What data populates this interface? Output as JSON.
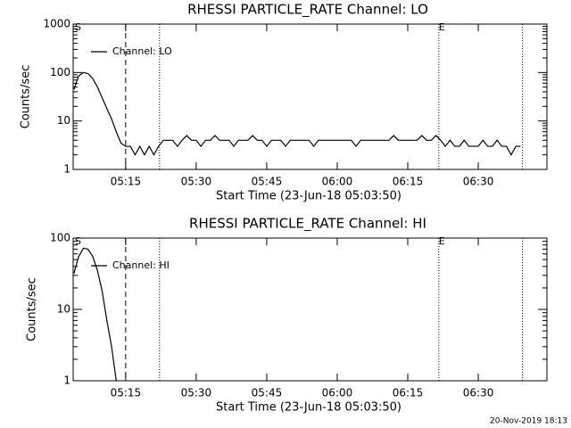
{
  "chart_data": [
    {
      "type": "line",
      "title": "RHESSI PARTICLE_RATE Channel: LO",
      "xlabel": "Start Time (23-Jun-18 05:03:50)",
      "ylabel": "Counts/sec",
      "log_y": true,
      "legend": "upper left",
      "x": [
        4,
        5,
        6,
        7,
        8,
        9,
        10,
        11,
        12,
        13,
        14,
        15,
        16,
        17,
        18,
        19,
        20,
        21,
        22,
        23,
        24,
        25,
        26,
        27,
        28,
        29,
        30,
        31,
        32,
        33,
        34,
        35,
        36,
        37,
        38,
        39,
        40,
        41,
        42,
        43,
        44,
        45,
        46,
        47,
        48,
        49,
        50,
        51,
        52,
        53,
        54,
        55,
        56,
        57,
        58,
        59,
        60,
        61,
        62,
        63,
        64,
        65,
        66,
        67,
        68,
        69,
        70,
        71,
        72,
        73,
        74,
        75,
        76,
        77,
        78,
        79,
        80,
        81,
        82,
        83,
        84,
        85,
        86,
        87,
        88,
        89,
        90,
        91,
        92,
        93,
        94,
        95,
        96,
        97,
        98,
        99
      ],
      "series": [
        {
          "name": "Channel: LO",
          "color": "#000000",
          "values": [
            45,
            85,
            100,
            95,
            75,
            50,
            30,
            18,
            11,
            6,
            3.5,
            3,
            3,
            2,
            3,
            2,
            3,
            2,
            3,
            4,
            4,
            4,
            3,
            4,
            5,
            4,
            4,
            3,
            4,
            4,
            5,
            4,
            4,
            4,
            3,
            4,
            4,
            4,
            5,
            4,
            4,
            3,
            4,
            4,
            4,
            3,
            4,
            4,
            4,
            4,
            4,
            3,
            4,
            4,
            4,
            4,
            4,
            4,
            4,
            4,
            3,
            4,
            4,
            4,
            4,
            4,
            4,
            4,
            5,
            4,
            4,
            4,
            4,
            4,
            5,
            4,
            4,
            5,
            4,
            3,
            4,
            3,
            3,
            4,
            3,
            3,
            3,
            4,
            3,
            3,
            4,
            3,
            3,
            2,
            3,
            3
          ]
        }
      ],
      "xlim": [
        3.83,
        104.6
      ],
      "ylim": [
        1,
        1000
      ],
      "xticks": [
        {
          "value": 15,
          "label": "05:15"
        },
        {
          "value": 30,
          "label": "05:30"
        },
        {
          "value": 45,
          "label": "05:45"
        },
        {
          "value": 60,
          "label": "06:00"
        },
        {
          "value": 75,
          "label": "06:15"
        },
        {
          "value": 90,
          "label": "06:30"
        }
      ],
      "yticks": [
        1,
        10,
        100,
        1000
      ],
      "vlines": [
        {
          "x": 15,
          "style": "dashed"
        },
        {
          "x": 22.2,
          "style": "dotted"
        },
        {
          "x": 81.6,
          "style": "dotted"
        },
        {
          "x": 99.4,
          "style": "dotted"
        }
      ],
      "annotations": [
        {
          "text": "S",
          "x": 4.2
        },
        {
          "text": "E",
          "x": 81.6
        }
      ]
    },
    {
      "type": "line",
      "title": "RHESSI PARTICLE_RATE Channel: HI",
      "xlabel": "Start Time (23-Jun-18 05:03:50)",
      "ylabel": "Counts/sec",
      "log_y": true,
      "legend": "upper left",
      "x": [
        4,
        5,
        6,
        7,
        8,
        9,
        10,
        11,
        12,
        13
      ],
      "series": [
        {
          "name": "Channel: HI",
          "color": "#000000",
          "values": [
            32,
            55,
            72,
            70,
            55,
            35,
            18,
            7,
            3,
            1
          ]
        }
      ],
      "xlim": [
        3.83,
        104.6
      ],
      "ylim": [
        1,
        100
      ],
      "xticks": [
        {
          "value": 15,
          "label": "05:15"
        },
        {
          "value": 30,
          "label": "05:30"
        },
        {
          "value": 45,
          "label": "05:45"
        },
        {
          "value": 60,
          "label": "06:00"
        },
        {
          "value": 75,
          "label": "06:15"
        },
        {
          "value": 90,
          "label": "06:30"
        }
      ],
      "yticks": [
        1,
        10,
        100
      ],
      "vlines": [
        {
          "x": 15,
          "style": "dashed"
        },
        {
          "x": 22.2,
          "style": "dotted"
        },
        {
          "x": 81.6,
          "style": "dotted"
        },
        {
          "x": 99.4,
          "style": "dotted"
        }
      ],
      "annotations": [
        {
          "text": "S",
          "x": 4.2
        },
        {
          "text": "E",
          "x": 81.6
        }
      ]
    }
  ],
  "footer": "20-Nov-2019 18:13"
}
